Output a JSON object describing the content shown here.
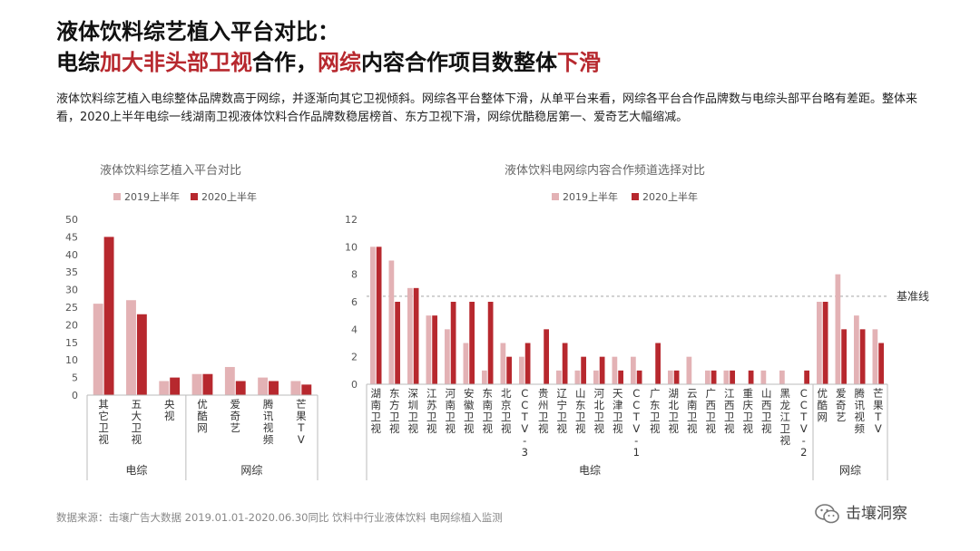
{
  "title": {
    "line1": "液体饮料综艺植入平台对比：",
    "line2": [
      {
        "text": "电综",
        "hl": false
      },
      {
        "text": "加大非头部卫视",
        "hl": true
      },
      {
        "text": "合作，",
        "hl": false
      },
      {
        "text": "网综",
        "hl": true
      },
      {
        "text": "内容合作项目数整体",
        "hl": false
      },
      {
        "text": "下滑",
        "hl": true
      }
    ]
  },
  "description": "液体饮料综艺植入电综整体品牌数高于网综，并逐渐向其它卫视倾斜。网综各平台整体下滑，从单平台来看，网综各平台合作品牌数与电综头部平台略有差距。整体来看，2020上半年电综一线湖南卫视液体饮料合作品牌数稳居榜首、东方卫视下滑，网综优酷稳居第一、爱奇艺大幅缩减。",
  "colors": {
    "s2019": "#e3b2b5",
    "s2020": "#b7282e"
  },
  "chart_data": [
    {
      "type": "bar",
      "title": "液体饮料综艺植入平台对比",
      "categories": [
        "其它卫视",
        "五大卫视",
        "央视",
        "优酷网",
        "爱奇艺",
        "腾讯视频",
        "芒果TV"
      ],
      "groups": [
        {
          "label": "电综",
          "count": 3
        },
        {
          "label": "网综",
          "count": 4
        }
      ],
      "series": [
        {
          "name": "2019上半年",
          "values": [
            26,
            27,
            4,
            6,
            8,
            5,
            4
          ]
        },
        {
          "name": "2020上半年",
          "values": [
            45,
            23,
            5,
            6,
            4,
            4,
            3
          ]
        }
      ],
      "ylim": [
        0,
        50
      ],
      "yticks": [
        0,
        5,
        10,
        15,
        20,
        25,
        30,
        35,
        40,
        45,
        50
      ],
      "legend": "top"
    },
    {
      "type": "bar",
      "title": "液体饮料电网综内容合作频道选择对比",
      "categories": [
        "湖南卫视",
        "东方卫视",
        "深圳卫视",
        "江苏卫视",
        "河南卫视",
        "安徽卫视",
        "东南卫视",
        "北京卫视",
        "CCTV-3",
        "贵州卫视",
        "辽宁卫视",
        "山东卫视",
        "河北卫视",
        "天津卫视",
        "CCTV-1",
        "广东卫视",
        "湖北卫视",
        "云南卫视",
        "广西卫视",
        "江西卫视",
        "重庆卫视",
        "山西卫视",
        "黑龙江卫视",
        "CCTV-2",
        "优酷网",
        "爱奇艺",
        "腾讯视频",
        "芒果TV"
      ],
      "groups": [
        {
          "label": "电综",
          "count": 24
        },
        {
          "label": "网综",
          "count": 4
        }
      ],
      "series": [
        {
          "name": "2019上半年",
          "values": [
            10,
            9,
            7,
            5,
            4,
            3,
            1,
            3,
            2,
            0,
            1,
            1,
            1,
            2,
            2,
            0,
            1,
            2,
            1,
            1,
            0,
            1,
            1,
            0,
            6,
            8,
            5,
            4
          ]
        },
        {
          "name": "2020上半年",
          "values": [
            10,
            6,
            7,
            5,
            6,
            6,
            6,
            2,
            3,
            4,
            3,
            2,
            2,
            1,
            1,
            3,
            1,
            0,
            1,
            1,
            1,
            0,
            0,
            1,
            6,
            4,
            4,
            3
          ]
        }
      ],
      "ylim": [
        0,
        12
      ],
      "yticks": [
        0,
        2,
        4,
        6,
        8,
        10,
        12
      ],
      "reference_line": {
        "label": "基准线",
        "value": 6.4
      },
      "legend": "top"
    }
  ],
  "source": "数据来源：击壤广告大数据 2019.01.01-2020.06.30同比 饮料中行业液体饮料 电网综植入监测",
  "brand": "击壤洞察"
}
